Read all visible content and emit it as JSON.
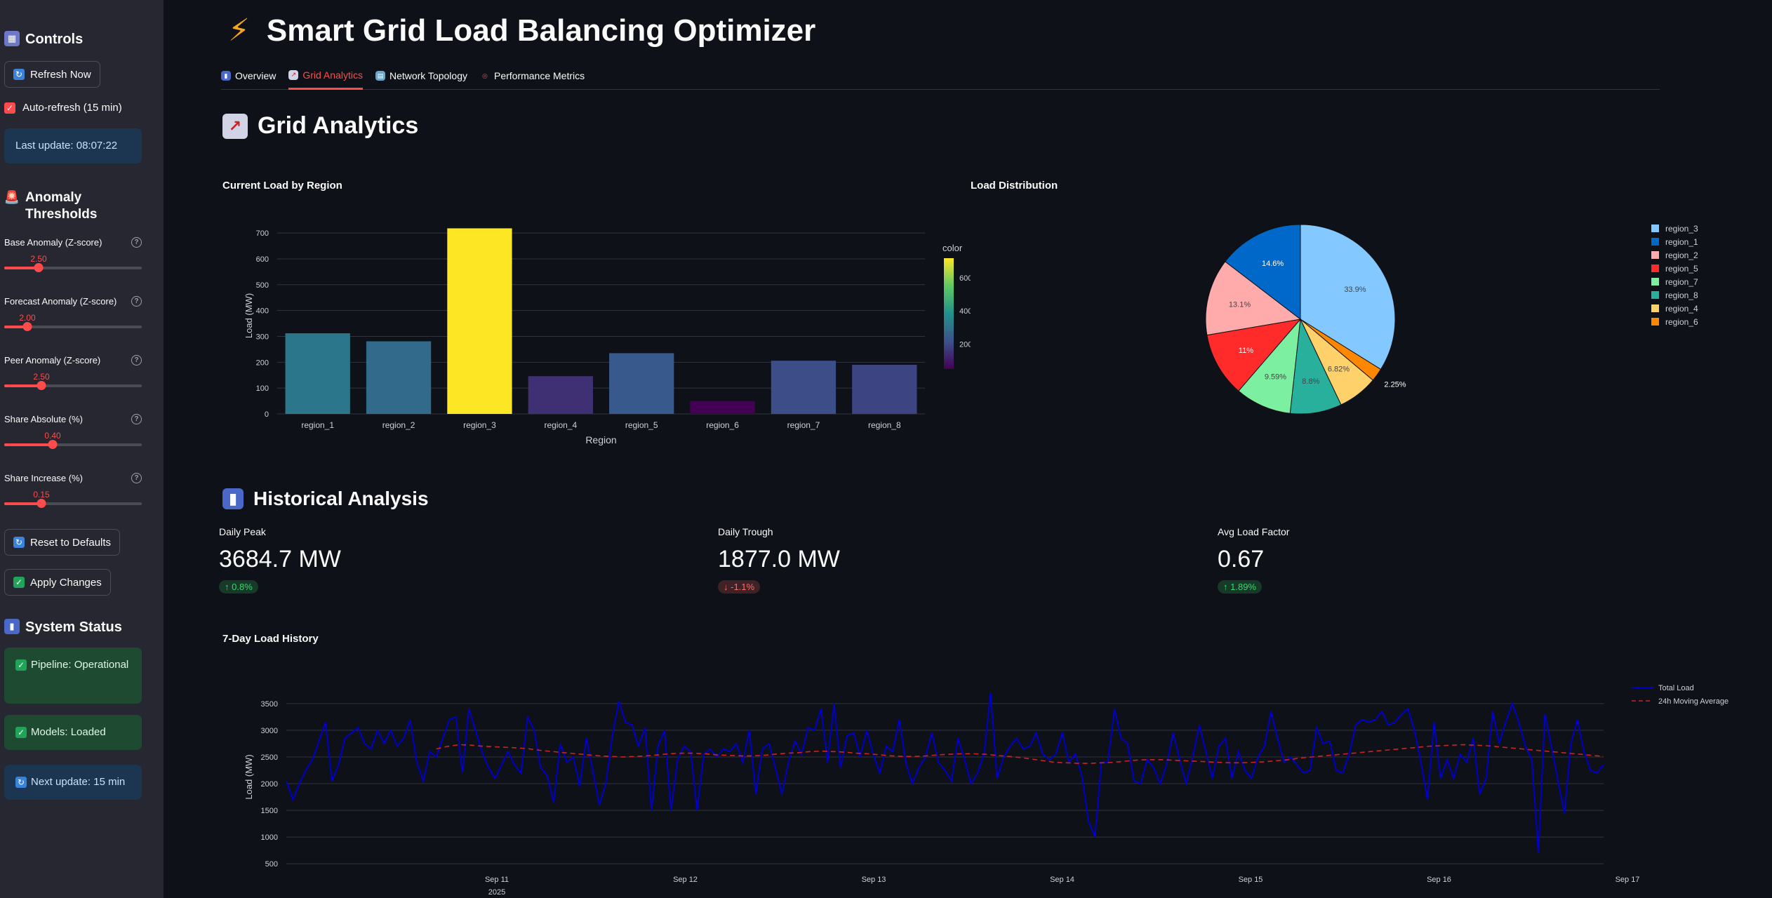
{
  "sidebar": {
    "controls_title": "Controls",
    "refresh_label": "Refresh Now",
    "autorefresh_label": "Auto-refresh (15 min)",
    "last_update": "Last update: 08:07:22",
    "anomaly_title": "Anomaly Thresholds",
    "sliders": [
      {
        "label": "Base Anomaly (Z-score)",
        "value": "2.50",
        "pct": 0.25
      },
      {
        "label": "Forecast Anomaly (Z-score)",
        "value": "2.00",
        "pct": 0.17
      },
      {
        "label": "Peer Anomaly (Z-score)",
        "value": "2.50",
        "pct": 0.27
      },
      {
        "label": "Share Absolute (%)",
        "value": "0.40",
        "pct": 0.35
      },
      {
        "label": "Share Increase (%)",
        "value": "0.15",
        "pct": 0.27
      }
    ],
    "reset_label": "Reset to Defaults",
    "apply_label": "Apply Changes",
    "status_title": "System Status",
    "pipeline": "Pipeline: Operational",
    "models": "Models: Loaded",
    "next_update": "Next update: 15 min"
  },
  "header": {
    "title": "Smart Grid Load Balancing Optimizer",
    "tabs": [
      "Overview",
      "Grid Analytics",
      "Network Topology",
      "Performance Metrics"
    ]
  },
  "grid_analytics": {
    "title": "Grid Analytics",
    "bar_title": "Current Load by Region",
    "pie_title": "Load Distribution"
  },
  "historical": {
    "title": "Historical Analysis",
    "metrics": [
      {
        "label": "Daily Peak",
        "value": "3684.7 MW",
        "delta": "0.8%",
        "dir": "up"
      },
      {
        "label": "Daily Trough",
        "value": "1877.0 MW",
        "delta": "-1.1%",
        "dir": "down"
      },
      {
        "label": "Avg Load Factor",
        "value": "0.67",
        "delta": "1.89%",
        "dir": "up"
      }
    ],
    "history_title": "7-Day Load History"
  },
  "colors": {
    "accent": "#ff4b4b",
    "line": "#0000cc",
    "ma": "#cc2222"
  },
  "chart_data": [
    {
      "type": "bar",
      "title": "",
      "xlabel": "Region",
      "ylabel": "Load (MW)",
      "categories": [
        "region_1",
        "region_2",
        "region_3",
        "region_4",
        "region_5",
        "region_6",
        "region_7",
        "region_8"
      ],
      "values": [
        312,
        281,
        718,
        146,
        235,
        50,
        206,
        190
      ],
      "yticks": [
        0,
        100,
        200,
        300,
        400,
        500,
        600,
        700
      ],
      "ylim": [
        0,
        760
      ],
      "colorbar": {
        "title": "color",
        "ticks": [
          200,
          400,
          600
        ],
        "range": [
          50,
          718
        ]
      }
    },
    {
      "type": "pie",
      "title": "",
      "slices": [
        {
          "label": "region_3",
          "pct": 33.9,
          "text": "33.9%",
          "color": "#83c9ff"
        },
        {
          "label": "region_6",
          "pct": 2.25,
          "text": "2.25%",
          "color": "#ff8700"
        },
        {
          "label": "region_4",
          "pct": 6.82,
          "text": "6.82%",
          "color": "#ffd16a"
        },
        {
          "label": "region_8",
          "pct": 8.8,
          "text": "8.8%",
          "color": "#29b09d"
        },
        {
          "label": "region_7",
          "pct": 9.59,
          "text": "9.59%",
          "color": "#7defa1"
        },
        {
          "label": "region_5",
          "pct": 11.0,
          "text": "11%",
          "color": "#ff2b2b"
        },
        {
          "label": "region_2",
          "pct": 13.1,
          "text": "13.1%",
          "color": "#ffabab"
        },
        {
          "label": "region_1",
          "pct": 14.6,
          "text": "14.6%",
          "color": "#0068c9"
        }
      ],
      "legend": [
        "region_3",
        "region_1",
        "region_2",
        "region_5",
        "region_7",
        "region_8",
        "region_4",
        "region_6"
      ]
    },
    {
      "type": "line",
      "title": "",
      "ylabel": "Load (MW)",
      "yticks": [
        500,
        1000,
        1500,
        2000,
        2500,
        3000,
        3500
      ],
      "ylim": [
        450,
        3800
      ],
      "xticks": [
        "Sep 11",
        "Sep 12",
        "Sep 13",
        "Sep 14",
        "Sep 15",
        "Sep 16",
        "Sep 17"
      ],
      "xyear": "2025",
      "series": [
        {
          "name": "Total Load",
          "values": [
            2050,
            1700,
            2000,
            2250,
            2450,
            2800,
            3150,
            2050,
            2350,
            2850,
            2950,
            3050,
            2750,
            2650,
            3000,
            2750,
            3000,
            2700,
            2850,
            3200,
            2400,
            2050,
            2600,
            2500,
            2850,
            3200,
            3250,
            2200,
            3400,
            3000,
            2600,
            2300,
            2100,
            2350,
            2600,
            2350,
            2200,
            3250,
            3000,
            2300,
            2150,
            1650,
            2750,
            2400,
            2500,
            1950,
            2850,
            2250,
            1600,
            2000,
            2900,
            3550,
            3150,
            3100,
            2700,
            3050,
            1500,
            2700,
            3000,
            1500,
            2450,
            2700,
            2600,
            1500,
            2550,
            2650,
            2500,
            2650,
            2600,
            2750,
            2400,
            3000,
            1800,
            2650,
            2750,
            2300,
            1800,
            2400,
            2800,
            2550,
            3050,
            3000,
            3400,
            2400,
            3500,
            2300,
            2900,
            2950,
            2500,
            3000,
            2550,
            2200,
            2700,
            2600,
            3200,
            2400,
            2000,
            2300,
            2500,
            2950,
            2400,
            2250,
            2050,
            2850,
            2450,
            2000,
            2200,
            2550,
            3700,
            2100,
            2500,
            2700,
            2850,
            2650,
            2700,
            2950,
            2550,
            2450,
            2550,
            2950,
            2400,
            2550,
            2150,
            1300,
            1000,
            2400,
            2400,
            3400,
            2850,
            2750,
            2050,
            2000,
            2450,
            2300,
            2000,
            2350,
            2950,
            2450,
            2000,
            2500,
            3100,
            2600,
            2100,
            2700,
            2850,
            2100,
            2600,
            2250,
            2100,
            2500,
            2700,
            3350,
            2850,
            2400,
            2500,
            2350,
            2200,
            2250,
            3050,
            2750,
            2800,
            2250,
            2200,
            2550,
            3100,
            3200,
            3150,
            3200,
            3350,
            3100,
            3150,
            3300,
            3400,
            3000,
            2400,
            1700,
            3150,
            2100,
            2450,
            2100,
            2550,
            2400,
            2850,
            1800,
            2100,
            3350,
            2750,
            3150,
            3500,
            3150,
            2700,
            2450,
            700,
            3300,
            2700,
            2050,
            1450,
            2750,
            3200,
            2600,
            2250,
            2200,
            2350
          ]
        },
        {
          "name": "24h Moving Average",
          "values": [
            2650,
            2700,
            2730,
            2720,
            2700,
            2690,
            2680,
            2670,
            2650,
            2620,
            2600,
            2580,
            2560,
            2540,
            2520,
            2510,
            2500,
            2510,
            2520,
            2540,
            2560,
            2570,
            2570,
            2560,
            2540,
            2530,
            2520,
            2520,
            2530,
            2550,
            2570,
            2580,
            2600,
            2610,
            2600,
            2590,
            2570,
            2560,
            2540,
            2520,
            2510,
            2510,
            2520,
            2540,
            2550,
            2560,
            2560,
            2550,
            2530,
            2510,
            2490,
            2460,
            2430,
            2400,
            2390,
            2380,
            2380,
            2390,
            2400,
            2420,
            2440,
            2450,
            2450,
            2440,
            2430,
            2420,
            2410,
            2400,
            2390,
            2390,
            2400,
            2410,
            2430,
            2450,
            2480,
            2500,
            2520,
            2540,
            2560,
            2580,
            2600,
            2620,
            2640,
            2660,
            2680,
            2700,
            2710,
            2720,
            2730,
            2720,
            2710,
            2690,
            2670,
            2650,
            2630,
            2610,
            2590,
            2570,
            2550,
            2530,
            2510
          ]
        }
      ]
    }
  ]
}
